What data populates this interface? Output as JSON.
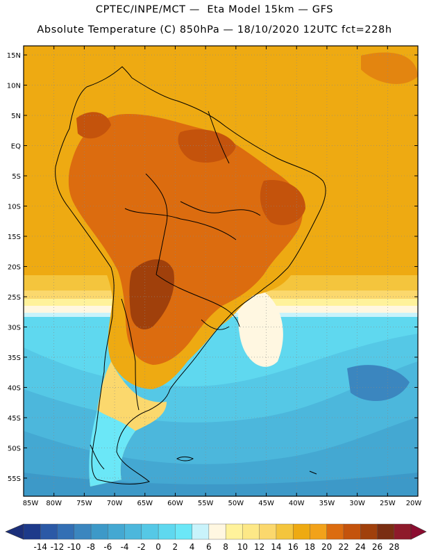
{
  "header": {
    "title_line1": "CPTEC/INPE/MCT —  Eta Model 15km — GFS",
    "title_line2": "Absolute Temperature (C) 850hPa — 18/10/2020 12UTC fct=228h"
  },
  "map": {
    "lat_labels": [
      "15N",
      "10N",
      "5N",
      "EQ",
      "5S",
      "10S",
      "15S",
      "20S",
      "25S",
      "30S",
      "35S",
      "40S",
      "45S",
      "50S",
      "55S"
    ],
    "lat_values": [
      15,
      10,
      5,
      0,
      -5,
      -10,
      -15,
      -20,
      -25,
      -30,
      -35,
      -40,
      -45,
      -50,
      -55
    ],
    "lon_labels": [
      "85W",
      "80W",
      "75W",
      "70W",
      "65W",
      "60W",
      "55W",
      "50W",
      "45W",
      "40W",
      "35W",
      "30W",
      "25W",
      "20W"
    ],
    "lon_values": [
      -85,
      -80,
      -75,
      -70,
      -65,
      -60,
      -55,
      -50,
      -45,
      -40,
      -35,
      -30,
      -25,
      -20
    ],
    "lat_range": [
      -58,
      16.5
    ],
    "lon_range": [
      -85,
      -20
    ]
  },
  "colorbar": {
    "tick_labels": [
      "-14",
      "-12",
      "-10",
      "-8",
      "-6",
      "-4",
      "-2",
      "0",
      "2",
      "4",
      "6",
      "8",
      "10",
      "12",
      "14",
      "16",
      "18",
      "20",
      "22",
      "24",
      "26",
      "28"
    ],
    "colors": [
      "#1d3a8a",
      "#2b59a6",
      "#336fb4",
      "#3b86bf",
      "#3d99c8",
      "#44a8d2",
      "#4cb7dc",
      "#55c8e6",
      "#5fd8ef",
      "#6be7f7",
      "#c9f3fb",
      "#fff7e1",
      "#fff29b",
      "#fde887",
      "#fbd86d",
      "#f4c53d",
      "#eeaa12",
      "#f2a21a",
      "#dc6c0f",
      "#c4530c",
      "#a0400b",
      "#7a2e12",
      "#8e1a2b"
    ],
    "under_color": "#1b2f7a",
    "over_color": "#8b0d30"
  }
}
